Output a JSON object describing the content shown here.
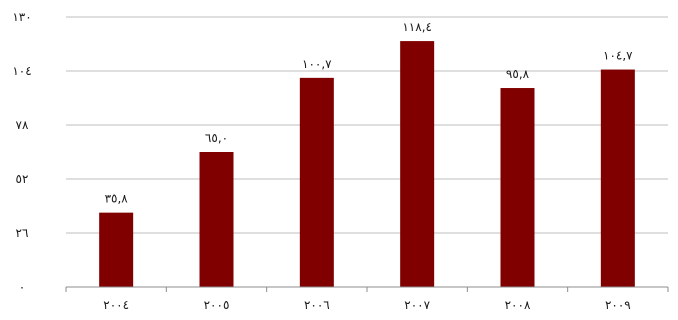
{
  "chart_data": {
    "type": "bar",
    "categories": [
      "٢٠٠٤",
      "٢٠٠٥",
      "٢٠٠٦",
      "٢٠٠٧",
      "٢٠٠٨",
      "٢٠٠٩"
    ],
    "values": [
      35.8,
      65.0,
      100.7,
      118.4,
      95.8,
      104.7
    ],
    "data_labels": [
      "٣٥,٨",
      "٦٥,٠",
      "١٠٠,٧",
      "١١٨,٤",
      "٩٥,٨",
      "١٠٤,٧"
    ],
    "ylim": [
      0,
      130
    ],
    "yticks": [
      0,
      26,
      52,
      78,
      104,
      130
    ],
    "ytick_labels": [
      "٠",
      "٢٦",
      "٥٢",
      "٧٨",
      "١٠٤",
      "١٣٠"
    ],
    "title": "",
    "xlabel": "",
    "ylabel": "",
    "grid": true,
    "legend": "none",
    "bar_color": "#800000",
    "grid_color": "#bfbfbf",
    "axis_color": "#8c8c8c"
  }
}
